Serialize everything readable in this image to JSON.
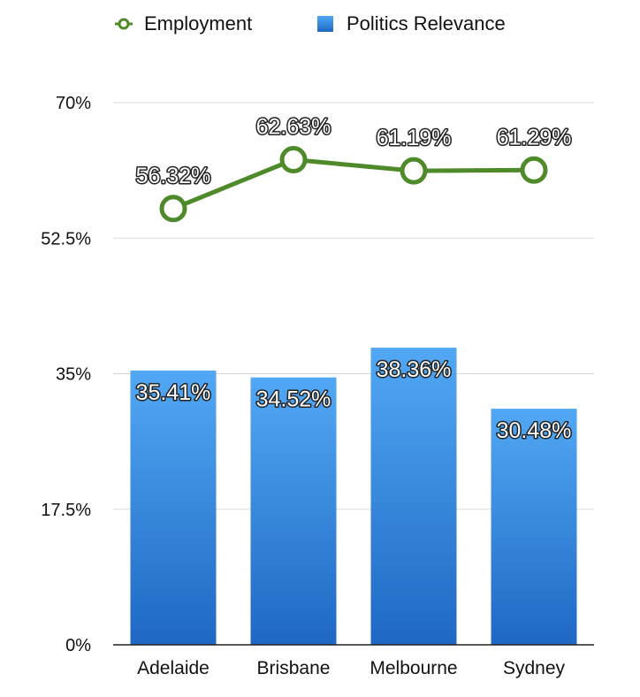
{
  "chart_data": {
    "type": "bar",
    "categories": [
      "Adelaide",
      "Brisbane",
      "Melbourne",
      "Sydney"
    ],
    "series": [
      {
        "name": "Politics Relevance",
        "kind": "bar",
        "values": [
          35.41,
          34.52,
          38.36,
          30.48
        ],
        "labels": [
          "35.41%",
          "34.52%",
          "38.36%",
          "30.48%"
        ],
        "color": "#2f86df"
      },
      {
        "name": "Employment",
        "kind": "line",
        "values": [
          56.32,
          62.63,
          61.19,
          61.29
        ],
        "labels": [
          "56.32%",
          "62.63%",
          "61.19%",
          "61.29%"
        ],
        "color": "#4f8a2a"
      }
    ],
    "yticks": [
      "0%",
      "17.5%",
      "35%",
      "52.5%",
      "70%"
    ],
    "ytick_values": [
      0,
      17.5,
      35,
      52.5,
      70
    ],
    "ylim": [
      0,
      70
    ],
    "grid": true,
    "legend_position": "top"
  },
  "legend": {
    "employment": "Employment",
    "politics": "Politics Relevance"
  }
}
